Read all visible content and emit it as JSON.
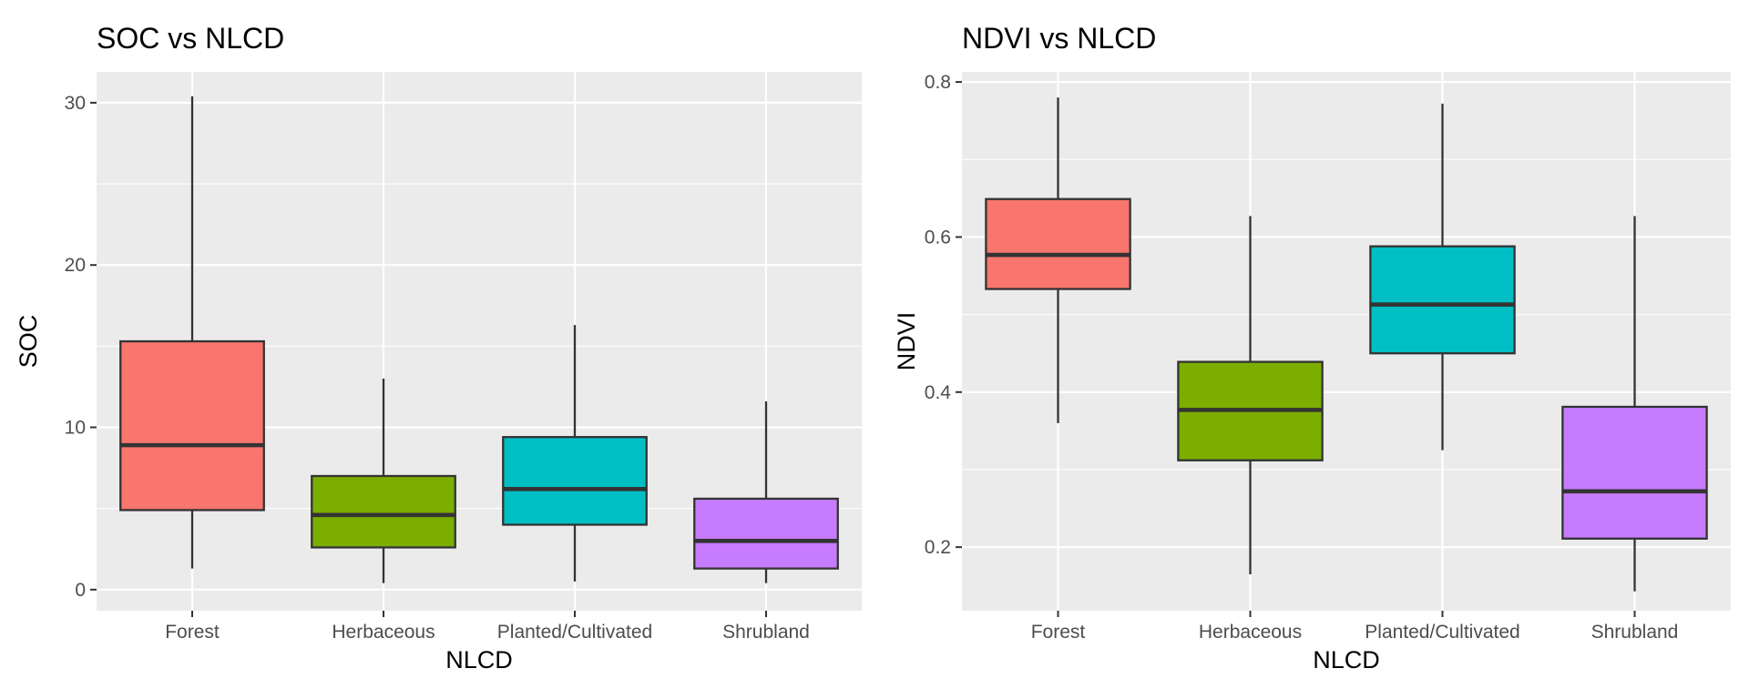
{
  "chart_data": [
    {
      "type": "box",
      "title": "SOC vs NLCD",
      "xlabel": "NLCD",
      "ylabel": "SOC",
      "ylim": [
        -1.3,
        31.9
      ],
      "yticks": [
        0,
        10,
        20,
        30
      ],
      "ytick_labels": [
        "0",
        "10",
        "20",
        "30"
      ],
      "grid": true,
      "categories": [
        "Forest",
        "Herbaceous",
        "Planted/Cultivated",
        "Shrubland"
      ],
      "boxes": [
        {
          "category": "Forest",
          "whisker_low": 1.3,
          "q1": 4.9,
          "median": 8.9,
          "q3": 15.3,
          "whisker_high": 30.4,
          "fill": "#F8766D"
        },
        {
          "category": "Herbaceous",
          "whisker_low": 0.4,
          "q1": 2.6,
          "median": 4.6,
          "q3": 7.0,
          "whisker_high": 13.0,
          "fill": "#7CAE00"
        },
        {
          "category": "Planted/Cultivated",
          "whisker_low": 0.5,
          "q1": 4.0,
          "median": 6.2,
          "q3": 9.4,
          "whisker_high": 16.3,
          "fill": "#00BFC4"
        },
        {
          "category": "Shrubland",
          "whisker_low": 0.4,
          "q1": 1.3,
          "median": 3.0,
          "q3": 5.6,
          "whisker_high": 11.6,
          "fill": "#C77CFF"
        }
      ]
    },
    {
      "type": "box",
      "title": "NDVI vs NLCD",
      "xlabel": "NLCD",
      "ylabel": "NDVI",
      "ylim": [
        0.118,
        0.813
      ],
      "yticks": [
        0.2,
        0.4,
        0.6,
        0.8
      ],
      "ytick_labels": [
        "0.2",
        "0.4",
        "0.6",
        "0.8"
      ],
      "grid": true,
      "categories": [
        "Forest",
        "Herbaceous",
        "Planted/Cultivated",
        "Shrubland"
      ],
      "boxes": [
        {
          "category": "Forest",
          "whisker_low": 0.36,
          "q1": 0.533,
          "median": 0.577,
          "q3": 0.649,
          "whisker_high": 0.78,
          "fill": "#F8766D"
        },
        {
          "category": "Herbaceous",
          "whisker_low": 0.165,
          "q1": 0.312,
          "median": 0.377,
          "q3": 0.439,
          "whisker_high": 0.627,
          "fill": "#7CAE00"
        },
        {
          "category": "Planted/Cultivated",
          "whisker_low": 0.325,
          "q1": 0.45,
          "median": 0.513,
          "q3": 0.588,
          "whisker_high": 0.772,
          "fill": "#00BFC4"
        },
        {
          "category": "Shrubland",
          "whisker_low": 0.143,
          "q1": 0.211,
          "median": 0.272,
          "q3": 0.381,
          "whisker_high": 0.627,
          "fill": "#C77CFF"
        }
      ]
    }
  ],
  "style": {
    "panel_background": "#EBEBEB",
    "grid_major": "#FFFFFF",
    "box_stroke": "#333333",
    "tick_label_color": "#4D4D4D"
  }
}
